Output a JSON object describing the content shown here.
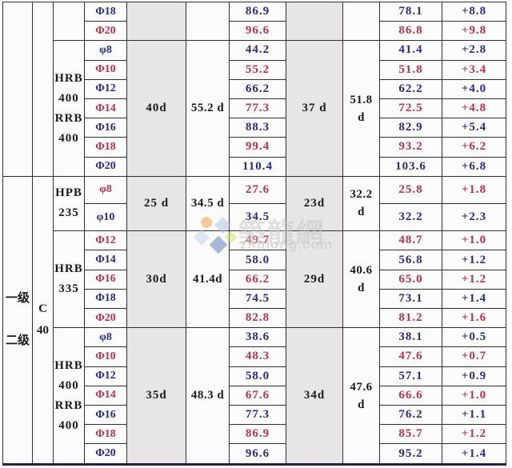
{
  "colors": {
    "blue_text": "#292c8b",
    "red_text": "#bb3347",
    "black_text": "#1b1b1b",
    "grid_line": "#2f2f2f",
    "gray_column_bg": "#e7e5e5",
    "table_bg": "#fcfbfb",
    "bottom_border": "#23233f",
    "watermark_gray": "#c9c9c9",
    "logo_orange": "#f49a2e",
    "logo_blue_light": "#a6c3e2",
    "logo_blue_pale": "#c2d4e8",
    "logo_blue_dark": "#4f77b0",
    "logo_green": "#cfe25e"
  },
  "left_column": {
    "line1": "一级",
    "line2": "二级"
  },
  "concrete_column": {
    "line1": "C",
    "line2": "40"
  },
  "watermark": {
    "cn": "築龍網",
    "en": "zhulong.com"
  },
  "sections": [
    {
      "steel_lines": [],
      "anchor_mult": "",
      "anchor_len": "",
      "lap_mult": "",
      "lap_len_lines": [],
      "rows": [
        {
          "dia": "Φ18",
          "anchor": "86.9",
          "lap": "78.1",
          "delta": "+8.8",
          "tone": "blue"
        },
        {
          "dia": "Φ20",
          "anchor": "96.6",
          "lap": "86.8",
          "delta": "+9.8",
          "tone": "red"
        }
      ]
    },
    {
      "steel_lines": [
        "HRB",
        "400",
        "RRB",
        "400"
      ],
      "anchor_mult": "40d",
      "anchor_len": "55.2 d",
      "lap_mult": "37 d",
      "lap_len_lines": [
        "51.8",
        "d"
      ],
      "rows": [
        {
          "dia": "φ8",
          "anchor": "44.2",
          "lap": "41.4",
          "delta": "+2.8",
          "tone": "blue"
        },
        {
          "dia": "Φ10",
          "anchor": "55.2",
          "lap": "51.8",
          "delta": "+3.4",
          "tone": "red"
        },
        {
          "dia": "Φ12",
          "anchor": "66.2",
          "lap": "62.2",
          "delta": "+4.0",
          "tone": "blue"
        },
        {
          "dia": "Φ14",
          "anchor": "77.3",
          "lap": "72.5",
          "delta": "+4.8",
          "tone": "red"
        },
        {
          "dia": "Φ16",
          "anchor": "88.3",
          "lap": "82.9",
          "delta": "+5.4",
          "tone": "blue"
        },
        {
          "dia": "Φ18",
          "anchor": "99.4",
          "lap": "93.2",
          "delta": "+6.2",
          "tone": "red"
        },
        {
          "dia": "Φ20",
          "anchor": "110.4",
          "lap": "103.6",
          "delta": "+6.8",
          "tone": "blue"
        }
      ]
    },
    {
      "steel_lines": [
        "HPB",
        "235"
      ],
      "anchor_mult": "25 d",
      "anchor_len": "34.5 d",
      "lap_mult": "23d",
      "lap_len_lines": [
        "32.2",
        "d"
      ],
      "rows": [
        {
          "dia": "φ8",
          "anchor": "27.6",
          "lap": "25.8",
          "delta": "+1.8",
          "tone": "red"
        },
        {
          "dia": "φ10",
          "anchor": "34.5",
          "lap": "32.2",
          "delta": "+2.3",
          "tone": "blue"
        }
      ]
    },
    {
      "steel_lines": [
        "HRB",
        "335"
      ],
      "anchor_mult": "30d",
      "anchor_len": "41.4d",
      "lap_mult": "29d",
      "lap_len_lines": [
        "40.6",
        "d"
      ],
      "rows": [
        {
          "dia": "Φ12",
          "anchor": "49.7",
          "lap": "48.7",
          "delta": "+1.0",
          "tone": "red"
        },
        {
          "dia": "Φ14",
          "anchor": "58.0",
          "lap": "56.8",
          "delta": "+1.2",
          "tone": "blue"
        },
        {
          "dia": "Φ16",
          "anchor": "66.2",
          "lap": "65.0",
          "delta": "+1.2",
          "tone": "red"
        },
        {
          "dia": "Φ18",
          "anchor": "74.5",
          "lap": "73.1",
          "delta": "+1.4",
          "tone": "blue"
        },
        {
          "dia": "Φ20",
          "anchor": "82.8",
          "lap": "81.2",
          "delta": "+1.6",
          "tone": "red"
        }
      ]
    },
    {
      "steel_lines": [
        "HRB",
        "400",
        "RRB",
        "400"
      ],
      "anchor_mult": "35d",
      "anchor_len": "48.3 d",
      "lap_mult": "34d",
      "lap_len_lines": [
        "47.6",
        "d"
      ],
      "rows": [
        {
          "dia": "φ8",
          "anchor": "38.6",
          "lap": "38.1",
          "delta": "+0.5",
          "tone": "blue"
        },
        {
          "dia": "Φ10",
          "anchor": "48.3",
          "lap": "47.6",
          "delta": "+0.7",
          "tone": "red"
        },
        {
          "dia": "Φ12",
          "anchor": "58.0",
          "lap": "57.1",
          "delta": "+0.9",
          "tone": "blue"
        },
        {
          "dia": "Φ14",
          "anchor": "67.6",
          "lap": "66.6",
          "delta": "+1.0",
          "tone": "red"
        },
        {
          "dia": "Φ16",
          "anchor": "77.3",
          "lap": "76.2",
          "delta": "+1.1",
          "tone": "blue"
        },
        {
          "dia": "Φ18",
          "anchor": "86.9",
          "lap": "85.7",
          "delta": "+1.2",
          "tone": "red"
        },
        {
          "dia": "Φ20",
          "anchor": "96.6",
          "lap": "95.2",
          "delta": "+1.4",
          "tone": "blue"
        }
      ]
    }
  ]
}
